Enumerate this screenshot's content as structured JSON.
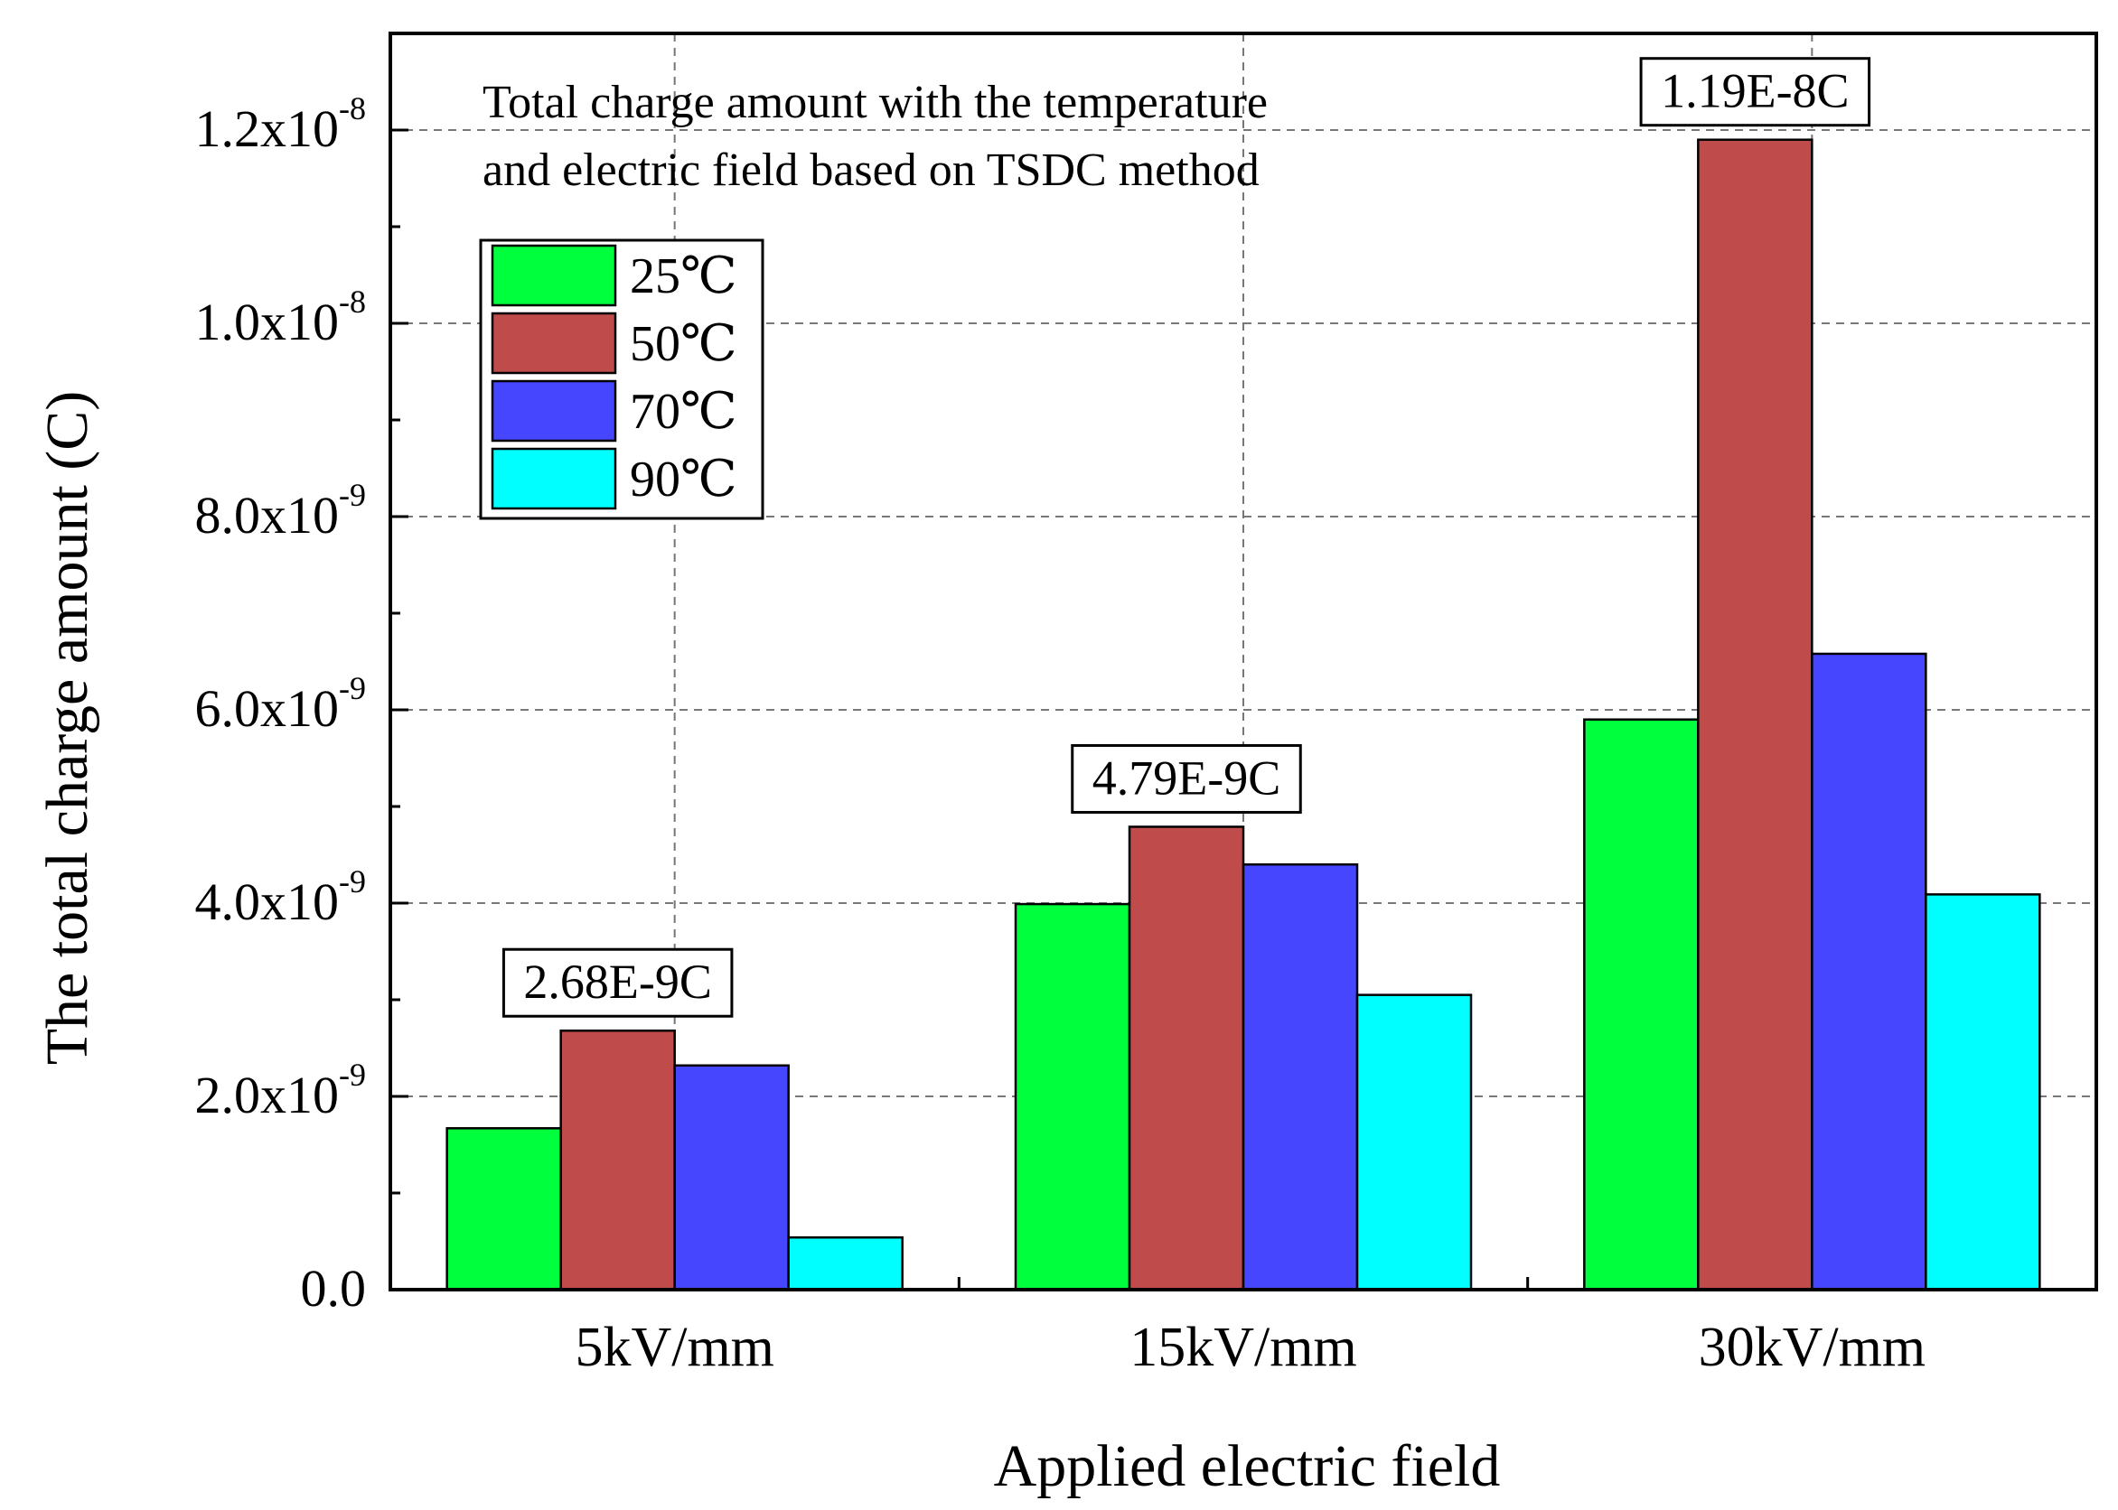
{
  "chart_data": {
    "type": "bar",
    "annotation_title_lines": [
      "Total charge amount with the temperature",
      "and electric field based on TSDC method"
    ],
    "xlabel": "Applied electric field",
    "ylabel": "The total charge amount (C)",
    "categories": [
      "5kV/mm",
      "15kV/mm",
      "30kV/mm"
    ],
    "ylim": [
      0,
      1.3e-08
    ],
    "yticks": [
      {
        "value": 0,
        "mantissa": "0.0",
        "exp": ""
      },
      {
        "value": 2e-09,
        "mantissa": "2.0x10",
        "exp": "-9"
      },
      {
        "value": 4e-09,
        "mantissa": "4.0x10",
        "exp": "-9"
      },
      {
        "value": 6e-09,
        "mantissa": "6.0x10",
        "exp": "-9"
      },
      {
        "value": 8e-09,
        "mantissa": "8.0x10",
        "exp": "-9"
      },
      {
        "value": 1e-08,
        "mantissa": "1.0x10",
        "exp": "-8"
      },
      {
        "value": 1.2e-08,
        "mantissa": "1.2x10",
        "exp": "-8"
      }
    ],
    "grid": true,
    "legend_position": "top-left",
    "series": [
      {
        "name": "25℃",
        "color": "#00ff3c",
        "values": [
          1.67e-09,
          3.99e-09,
          5.9e-09
        ]
      },
      {
        "name": "50℃",
        "color": "#c04b4b",
        "values": [
          2.68e-09,
          4.79e-09,
          1.19e-08
        ]
      },
      {
        "name": "70℃",
        "color": "#4646ff",
        "values": [
          2.32e-09,
          4.4e-09,
          6.58e-09
        ]
      },
      {
        "name": "90℃",
        "color": "#00ffff",
        "values": [
          5.4e-10,
          3.05e-09,
          4.09e-09
        ]
      }
    ],
    "data_labels": [
      {
        "category_index": 0,
        "series_index": 1,
        "text": "2.68E-9C"
      },
      {
        "category_index": 1,
        "series_index": 1,
        "text": "4.79E-9C"
      },
      {
        "category_index": 2,
        "series_index": 1,
        "text": "1.19E-8C"
      }
    ]
  }
}
